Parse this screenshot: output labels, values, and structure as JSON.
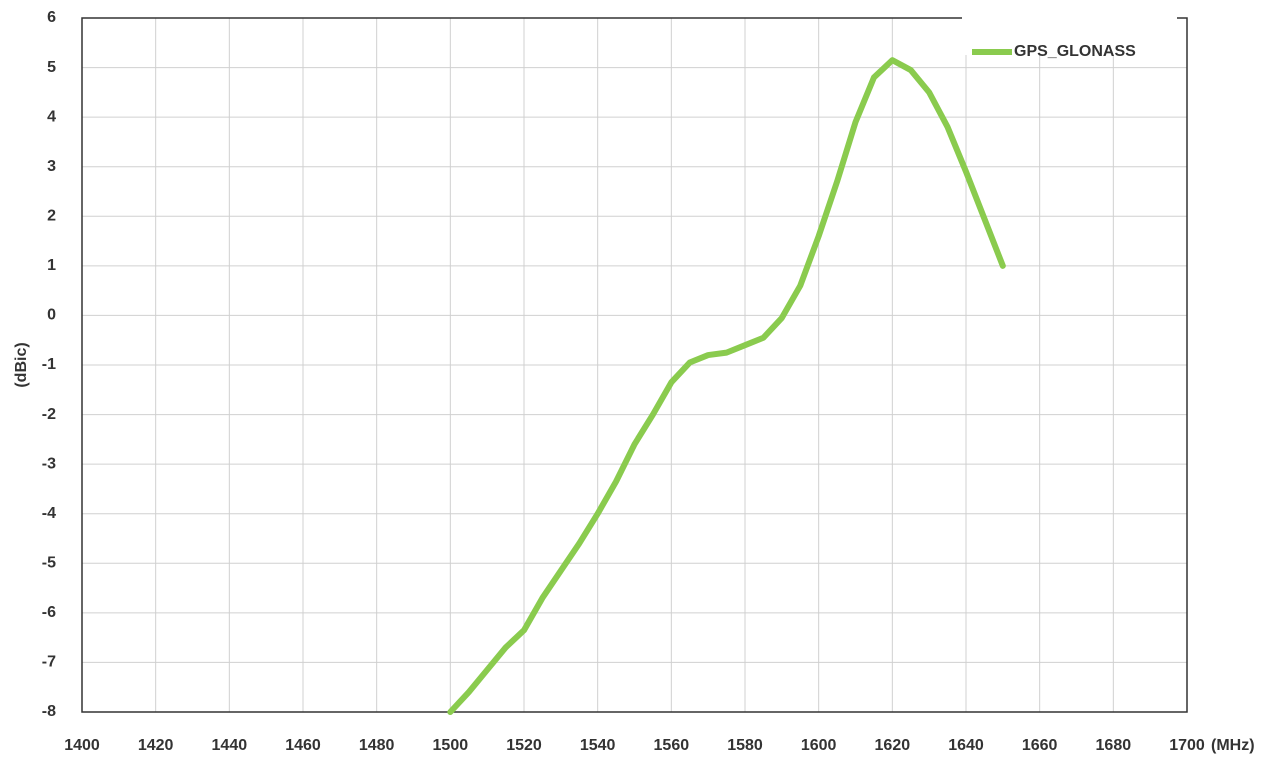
{
  "chart_data": {
    "type": "line",
    "xlabel": "(MHz)",
    "ylabel": "(dBic)",
    "x": [
      1500,
      1505,
      1510,
      1515,
      1520,
      1525,
      1530,
      1535,
      1540,
      1545,
      1550,
      1555,
      1560,
      1565,
      1570,
      1575,
      1580,
      1585,
      1590,
      1595,
      1600,
      1605,
      1610,
      1615,
      1620,
      1625,
      1630,
      1635,
      1640,
      1645,
      1650
    ],
    "series": [
      {
        "name": "GPS_GLONASS",
        "color": "#8acb4e",
        "values": [
          -8,
          -7.6,
          -7.15,
          -6.7,
          -6.35,
          -5.7,
          -5.15,
          -4.6,
          -4.0,
          -3.35,
          -2.6,
          -2.0,
          -1.35,
          -0.95,
          -0.8,
          -0.75,
          -0.6,
          -0.45,
          -0.05,
          0.6,
          1.6,
          2.7,
          3.9,
          4.8,
          5.15,
          4.95,
          4.5,
          3.8,
          2.9,
          1.95,
          1.0
        ]
      }
    ],
    "xlim": [
      1400,
      1700
    ],
    "xticks": [
      1400,
      1420,
      1440,
      1460,
      1480,
      1500,
      1520,
      1540,
      1560,
      1580,
      1600,
      1620,
      1640,
      1660,
      1680,
      1700
    ],
    "ylim": [
      -8,
      6
    ],
    "yticks": [
      -8,
      -7,
      -6,
      -5,
      -4,
      -3,
      -2,
      -1,
      0,
      1,
      2,
      3,
      4,
      5,
      6
    ],
    "grid": true,
    "legend": "upper right"
  }
}
